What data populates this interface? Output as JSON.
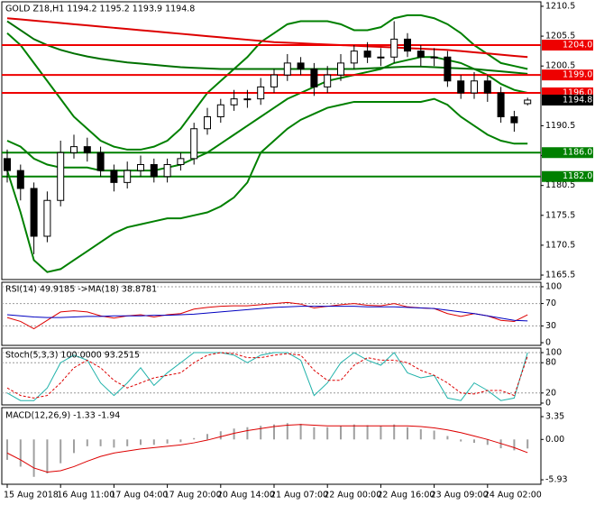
{
  "chart_data": [
    {
      "type": "candlestick",
      "title": "GOLD Z18,H1 1194.2 1195.2 1193.9 1194.8",
      "open": [
        1185,
        1183,
        1180,
        1172,
        1178,
        1186,
        1187,
        1186,
        1183,
        1181,
        1183,
        1184,
        1182,
        1184,
        1185,
        1190,
        1192,
        1194,
        1195,
        1195,
        1197,
        1199,
        1201,
        1200,
        1197,
        1199,
        1201,
        1203,
        1202,
        1202,
        1205,
        1203,
        1202,
        1202,
        1198,
        1196,
        1198,
        1196,
        1192,
        1194.2
      ],
      "high": [
        1186.5,
        1184,
        1181,
        1179.5,
        1188,
        1189,
        1188.5,
        1187,
        1184,
        1184.5,
        1185.5,
        1185,
        1185,
        1186,
        1191,
        1193.5,
        1195,
        1196.5,
        1196.5,
        1198.5,
        1200,
        1202.5,
        1202,
        1201,
        1200.5,
        1202.5,
        1204,
        1204.5,
        1203.5,
        1208,
        1206,
        1204,
        1203.5,
        1203,
        1199,
        1199.5,
        1199,
        1197,
        1193,
        1195.2
      ],
      "low": [
        1181,
        1178,
        1169,
        1171,
        1177,
        1185,
        1184.5,
        1182,
        1179.5,
        1180,
        1182,
        1181,
        1181,
        1183,
        1184,
        1189,
        1191,
        1193,
        1193.5,
        1194,
        1196,
        1198,
        1199,
        1195.5,
        1196,
        1198,
        1200,
        1201,
        1200.5,
        1201,
        1202,
        1200.5,
        1200.5,
        1197,
        1195,
        1195,
        1194.5,
        1191,
        1189.5,
        1193.9
      ],
      "close": [
        1183,
        1180,
        1172,
        1178,
        1186,
        1187,
        1186,
        1183,
        1181,
        1183,
        1184,
        1182,
        1184,
        1185,
        1190,
        1192,
        1194,
        1195,
        1195,
        1197,
        1199,
        1201,
        1200,
        1197,
        1199,
        1201,
        1203,
        1202,
        1202,
        1205,
        1203,
        1202,
        1202,
        1198,
        1196,
        1198,
        1196,
        1192,
        1191,
        1194.8
      ],
      "overlays": [
        {
          "color": "#008000",
          "values": [
            1206,
            1204,
            1201,
            1198,
            1195,
            1192,
            1190,
            1188,
            1187,
            1186.5,
            1186.5,
            1187,
            1188,
            1190,
            1193,
            1196,
            1198,
            1200,
            1202,
            1204.5,
            1206,
            1207.5,
            1208,
            1208,
            1208,
            1207.5,
            1206.5,
            1206.5,
            1207,
            1208.5,
            1209,
            1209,
            1208.5,
            1207.5,
            1206,
            1204,
            1202.5,
            1201,
            1200.5,
            1200
          ]
        },
        {
          "color": "#008000",
          "values": [
            1188,
            1187,
            1185,
            1184,
            1183.5,
            1183.5,
            1183.5,
            1183,
            1183,
            1183,
            1183,
            1183,
            1183.5,
            1184,
            1185,
            1186,
            1187.5,
            1189,
            1190.5,
            1192,
            1193.5,
            1195,
            1196,
            1197,
            1198,
            1198.5,
            1199,
            1199.5,
            1200,
            1201,
            1201.5,
            1202,
            1202,
            1201.5,
            1201,
            1200,
            1199,
            1197.5,
            1196.5,
            1196
          ]
        },
        {
          "color": "#008000",
          "values": [
            1183,
            1176,
            1168,
            1166,
            1166.5,
            1168,
            1169.5,
            1171,
            1172.5,
            1173.5,
            1174,
            1174.5,
            1175,
            1175,
            1175.5,
            1176,
            1177,
            1178.5,
            1181,
            1186,
            1188,
            1190,
            1191.5,
            1192.5,
            1193.5,
            1194,
            1194.5,
            1194.5,
            1194.5,
            1194.5,
            1194.5,
            1194.5,
            1195,
            1194,
            1192,
            1190.5,
            1189,
            1188,
            1187.5,
            1187.5
          ]
        },
        {
          "color": "#dd0000",
          "values": [
            1208.5,
            1208.3,
            1208.1,
            1207.9,
            1207.7,
            1207.5,
            1207.3,
            1207.1,
            1206.9,
            1206.7,
            1206.5,
            1206.3,
            1206.1,
            1205.9,
            1205.7,
            1205.5,
            1205.3,
            1205.1,
            1204.9,
            1204.7,
            1204.5,
            1204.4,
            1204.3,
            1204.2,
            1204.1,
            1204,
            1203.9,
            1203.8,
            1203.7,
            1203.6,
            1203.5,
            1203.4,
            1203.3,
            1203.2,
            1203,
            1202.8,
            1202.6,
            1202.4,
            1202.2,
            1202
          ]
        },
        {
          "color": "#007000",
          "values": [
            1208,
            1206.5,
            1205,
            1204,
            1203.2,
            1202.6,
            1202.1,
            1201.7,
            1201.4,
            1201.1,
            1200.9,
            1200.7,
            1200.5,
            1200.3,
            1200.2,
            1200.1,
            1200,
            1200,
            1200,
            1200,
            1200,
            1200,
            1200,
            1200,
            1200,
            1200,
            1200,
            1200.1,
            1200.2,
            1200.3,
            1200.4,
            1200.4,
            1200.3,
            1200.2,
            1200.1,
            1200,
            1199.8,
            1199.6,
            1199.4,
            1199.2
          ]
        }
      ],
      "hlines": {
        "values": [
          1204,
          1199,
          1196,
          1186,
          1182
        ],
        "value_labels": [
          "1204.0",
          "1199.0",
          "1196.0",
          "1186.0",
          "1182.0"
        ],
        "colors": [
          "#ee0000",
          "#ee0000",
          "#ee0000",
          "#008000",
          "#008000"
        ]
      },
      "ylim": [
        1164.75,
        1211.25
      ],
      "yticks": [
        1165.5,
        1170.5,
        1175.5,
        1180.5,
        1185.5,
        1190.5,
        1200.5,
        1205.5,
        1210.5
      ]
    },
    {
      "type": "line",
      "title": "RSI(14) 49.9185 ->MA(18) 38.8781",
      "series": [
        {
          "color": "#dd0000",
          "values": [
            45,
            38,
            25,
            40,
            55,
            57,
            55,
            48,
            44,
            48,
            50,
            46,
            50,
            52,
            60,
            63,
            65,
            66,
            66,
            68,
            70,
            72,
            69,
            62,
            65,
            68,
            70,
            67,
            66,
            70,
            64,
            62,
            61,
            52,
            47,
            52,
            48,
            40,
            38,
            49.9
          ]
        },
        {
          "color": "#0000c0",
          "values": [
            50,
            48,
            46,
            45,
            45,
            46,
            47,
            47,
            48,
            48,
            48,
            49,
            49,
            50,
            51,
            53,
            55,
            57,
            59,
            61,
            63,
            64,
            65,
            65,
            65,
            65,
            65,
            64,
            64,
            64,
            63,
            62,
            61,
            58,
            55,
            52,
            48,
            44,
            40,
            38.9
          ]
        }
      ],
      "ylim": [
        -4.8,
        108
      ],
      "yticks": [
        0,
        30,
        70,
        100
      ]
    },
    {
      "type": "line",
      "title": "Stoch(5,3,3) 100.0000 93.2515",
      "series": [
        {
          "color": "#20b2aa",
          "values": [
            20,
            5,
            5,
            30,
            80,
            95,
            85,
            40,
            15,
            40,
            70,
            35,
            60,
            80,
            100,
            100,
            100,
            95,
            80,
            95,
            100,
            100,
            85,
            15,
            40,
            80,
            100,
            85,
            75,
            100,
            60,
            50,
            55,
            10,
            5,
            40,
            25,
            5,
            10,
            100
          ]
        },
        {
          "color": "#dd0000",
          "dashed": true,
          "values": [
            30,
            15,
            10,
            15,
            40,
            70,
            85,
            70,
            45,
            30,
            40,
            50,
            55,
            60,
            80,
            95,
            100,
            98,
            90,
            90,
            95,
            98,
            95,
            65,
            45,
            45,
            75,
            90,
            85,
            85,
            80,
            65,
            55,
            40,
            20,
            18,
            25,
            25,
            15,
            93.25
          ]
        }
      ],
      "ylim": [
        -3.6,
        109
      ],
      "yticks": [
        0,
        20,
        80,
        100
      ]
    },
    {
      "type": "macd",
      "title": "MACD(12,26,9) -1.33 -1.94",
      "categories": [
        "15 Aug 2018",
        null,
        null,
        null,
        "16 Aug 11:00",
        null,
        null,
        null,
        "17 Aug 04:00",
        null,
        null,
        null,
        "17 Aug 20:00",
        null,
        null,
        null,
        "20 Aug 14:00",
        null,
        null,
        null,
        "21 Aug 07:00",
        null,
        null,
        null,
        "22 Aug 00:00",
        null,
        null,
        null,
        "22 Aug 16:00",
        null,
        null,
        null,
        "23 Aug 09:00",
        null,
        null,
        null,
        "24 Aug 02:00",
        null,
        null,
        null
      ],
      "values": [
        -3,
        -4,
        -5.5,
        -5,
        -3.5,
        -2,
        -1,
        -1,
        -1.2,
        -1,
        -0.8,
        -0.8,
        -0.6,
        -0.4,
        0.2,
        0.8,
        1.2,
        1.6,
        1.8,
        2,
        2.2,
        2.4,
        2.3,
        1.8,
        1.8,
        2,
        2.2,
        2.1,
        2,
        2.2,
        1.8,
        1.5,
        1.3,
        0.5,
        -0.3,
        -0.5,
        -0.8,
        -1.3,
        -1.6,
        -1.33
      ],
      "color": "#a0a0a0",
      "series": [
        {
          "color": "#dd0000",
          "values": [
            -2,
            -3,
            -4.2,
            -4.8,
            -4.6,
            -4,
            -3.2,
            -2.5,
            -2,
            -1.7,
            -1.4,
            -1.2,
            -1,
            -0.8,
            -0.5,
            -0.1,
            0.4,
            0.9,
            1.3,
            1.6,
            1.9,
            2.1,
            2.2,
            2.1,
            2,
            2,
            2,
            2,
            2,
            2,
            2,
            1.9,
            1.7,
            1.4,
            1,
            0.5,
            0,
            -0.6,
            -1.2,
            -1.94
          ]
        }
      ],
      "ylim": [
        -6.59,
        4.68
      ],
      "yticks": [
        -5.93,
        {
          "value": 0,
          "label": "0.00"
        },
        3.35
      ]
    }
  ]
}
